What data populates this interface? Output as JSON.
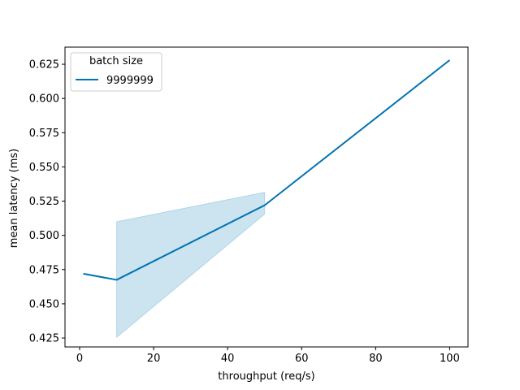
{
  "chart_data": {
    "type": "line",
    "xlabel": "throughput (req/s)",
    "ylabel": "mean latency (ms)",
    "xlim": [
      -3.95,
      104.95
    ],
    "ylim": [
      0.4185,
      0.6375
    ],
    "x_ticks": [
      0,
      20,
      40,
      60,
      80,
      100
    ],
    "x_tick_labels": [
      "0",
      "20",
      "40",
      "60",
      "80",
      "100"
    ],
    "y_ticks": [
      0.425,
      0.45,
      0.475,
      0.5,
      0.525,
      0.55,
      0.575,
      0.6,
      0.625
    ],
    "y_tick_labels": [
      "0.425",
      "0.450",
      "0.475",
      "0.500",
      "0.525",
      "0.550",
      "0.575",
      "0.600",
      "0.625"
    ],
    "grid": false,
    "legend": {
      "title": "batch size",
      "position": "top-left"
    },
    "series": [
      {
        "name": "9999999",
        "color": "#0173b2",
        "x": [
          1,
          10,
          50,
          100
        ],
        "y": [
          0.472,
          0.4675,
          0.522,
          0.628
        ],
        "ci_x": [
          10,
          50
        ],
        "ci_low": [
          0.4255,
          0.5155
        ],
        "ci_high": [
          0.51,
          0.5315
        ]
      }
    ]
  }
}
